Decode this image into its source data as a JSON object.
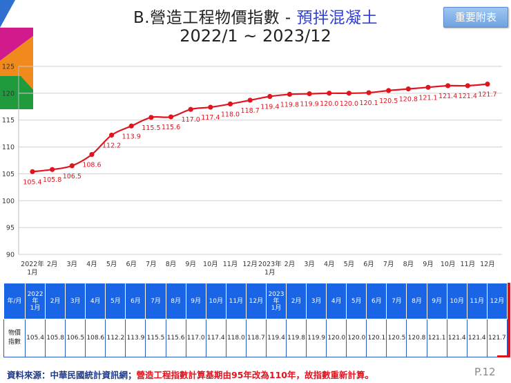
{
  "title": {
    "prefix": "B.營造工程物價指數 - ",
    "highlight": "預拌混凝土",
    "period": "2022/1 ~ 2023/12"
  },
  "appendix_button": "重要附表",
  "colors": {
    "line": "#e0141e",
    "header": "#1a64e6",
    "title_highlight": "#2f3fd6"
  },
  "chart_data": {
    "type": "line",
    "x": [
      "2022年1月",
      "2月",
      "3月",
      "4月",
      "5月",
      "6月",
      "7月",
      "8月",
      "9月",
      "10月",
      "11月",
      "12月",
      "2023年1月",
      "2月",
      "3月",
      "4月",
      "5月",
      "6月",
      "7月",
      "8月",
      "9月",
      "10月",
      "11月",
      "12月"
    ],
    "x_ticks": [
      [
        "2022年",
        "1月"
      ],
      [
        "2月"
      ],
      [
        "3月"
      ],
      [
        "4月"
      ],
      [
        "5月"
      ],
      [
        "6月"
      ],
      [
        "7月"
      ],
      [
        "8月"
      ],
      [
        "9月"
      ],
      [
        "10月"
      ],
      [
        "11月"
      ],
      [
        "12月"
      ],
      [
        "2023年",
        "1月"
      ],
      [
        "2月"
      ],
      [
        "3月"
      ],
      [
        "4月"
      ],
      [
        "5月"
      ],
      [
        "6月"
      ],
      [
        "7月"
      ],
      [
        "8月"
      ],
      [
        "9月"
      ],
      [
        "10月"
      ],
      [
        "11月"
      ],
      [
        "12月"
      ]
    ],
    "values": [
      105.4,
      105.8,
      106.5,
      108.6,
      112.2,
      113.9,
      115.5,
      115.6,
      117.0,
      117.4,
      118.0,
      118.7,
      119.4,
      119.8,
      119.9,
      120.0,
      120.0,
      120.1,
      120.5,
      120.8,
      121.1,
      121.4,
      121.4,
      121.7
    ],
    "labels": [
      "105.4",
      "105.8",
      "106.5",
      "108.6",
      "112.2",
      "113.9",
      "115.5",
      "115.6",
      "117.0",
      "117.4",
      "118.0",
      "118.7",
      "119.4",
      "119.8",
      "119.9",
      "120.0",
      "120.0",
      "120.1",
      "120.5",
      "120.8",
      "121.1",
      "121.4",
      "121.4",
      "121.7"
    ],
    "ylim": [
      90,
      125
    ],
    "yticks": [
      90,
      95,
      100,
      105,
      110,
      115,
      120,
      125
    ],
    "grid": "horizontal"
  },
  "table": {
    "corner_header": "年/月",
    "columns": [
      [
        "2022年",
        "1月"
      ],
      [
        "2月"
      ],
      [
        "3月"
      ],
      [
        "4月"
      ],
      [
        "5月"
      ],
      [
        "6月"
      ],
      [
        "7月"
      ],
      [
        "8月"
      ],
      [
        "9月"
      ],
      [
        "10月"
      ],
      [
        "11月"
      ],
      [
        "12月"
      ],
      [
        "2023年",
        "1月"
      ],
      [
        "2月"
      ],
      [
        "3月"
      ],
      [
        "4月"
      ],
      [
        "5月"
      ],
      [
        "6月"
      ],
      [
        "7月"
      ],
      [
        "8月"
      ],
      [
        "9月"
      ],
      [
        "10月"
      ],
      [
        "11月"
      ],
      [
        "12月"
      ]
    ],
    "row_header": [
      "物價",
      "指數"
    ],
    "values": [
      "105.4",
      "105.8",
      "106.5",
      "108.6",
      "112.2",
      "113.9",
      "115.5",
      "115.6",
      "117.0",
      "117.4",
      "118.0",
      "118.7",
      "119.4",
      "119.8",
      "119.9",
      "120.0",
      "120.0",
      "120.1",
      "120.5",
      "120.8",
      "121.1",
      "121.4",
      "121.4",
      "121.7"
    ]
  },
  "footer": {
    "source": "資料來源：中華民國統計資訊網；",
    "note": "營造工程指數計算基期由95年改為110年，故指數重新計算。",
    "page": "P.12"
  }
}
